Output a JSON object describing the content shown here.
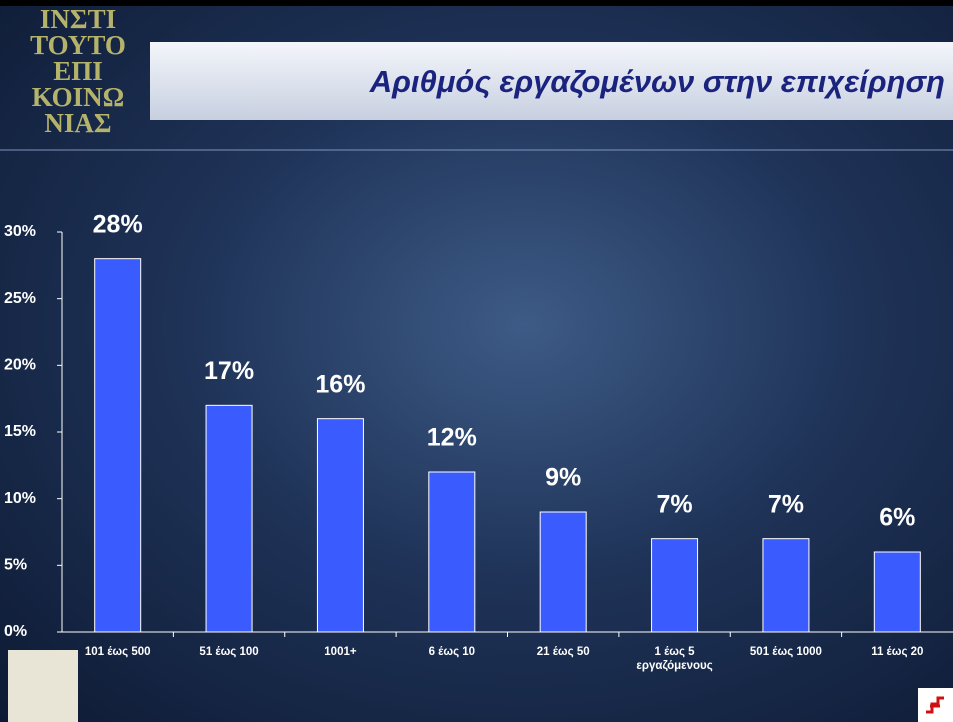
{
  "logo": {
    "lines": [
      "ΙΝΣΤΙ",
      "ΤΟΥΤΟ",
      "ΕΠΙ",
      "ΚΟΙΝΩ",
      "ΝΙΑΣ"
    ]
  },
  "chart_data": {
    "type": "bar",
    "title": "Αριθμός εργαζομένων στην επιχείρηση",
    "categories": [
      "101 έως 500",
      "51 έως 100",
      "1001+",
      "6 έως 10",
      "21 έως 50",
      "1 έως 5 εργαζόμενους",
      "501 έως 1000",
      "11 έως 20"
    ],
    "values": [
      28,
      17,
      16,
      12,
      9,
      7,
      7,
      6
    ],
    "value_labels": [
      "28%",
      "17%",
      "16%",
      "12%",
      "9%",
      "7%",
      "7%",
      "6%"
    ],
    "color": "#3a5cff",
    "ylim": [
      0,
      30
    ],
    "yticks": [
      {
        "value": 0,
        "label": "0%"
      },
      {
        "value": 5,
        "label": "5%"
      },
      {
        "value": 10,
        "label": "10%"
      },
      {
        "value": 15,
        "label": "15%"
      },
      {
        "value": 20,
        "label": "20%"
      },
      {
        "value": 25,
        "label": "25%"
      },
      {
        "value": 30,
        "label": "30%"
      }
    ],
    "grid": false
  }
}
